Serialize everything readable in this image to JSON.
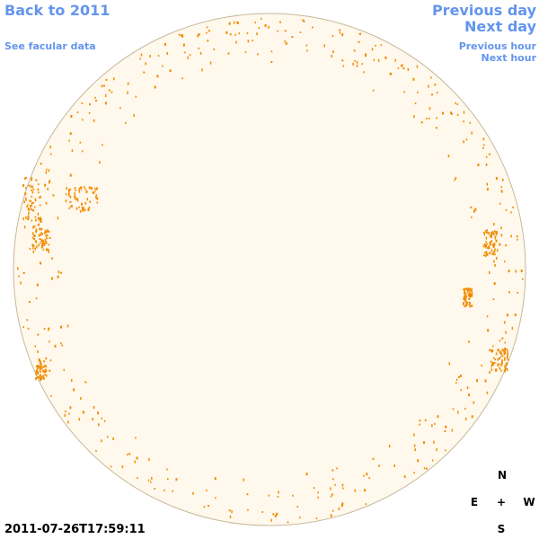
{
  "nav": {
    "back": "Back to 2011",
    "facular": "See facular data",
    "prev_day": "Previous day",
    "next_day": "Next day",
    "prev_hour": "Previous hour",
    "next_hour": "Next hour"
  },
  "timestamp": "2011-07-26T17:59:11",
  "compass": {
    "north": "N",
    "south": "S",
    "east": "E",
    "west": "W",
    "center": "+"
  },
  "colors": {
    "link": "#6495ED",
    "disk_fill": "#FFF8EC",
    "disk_border": "#C8B89A",
    "facula": "#F08C00"
  }
}
